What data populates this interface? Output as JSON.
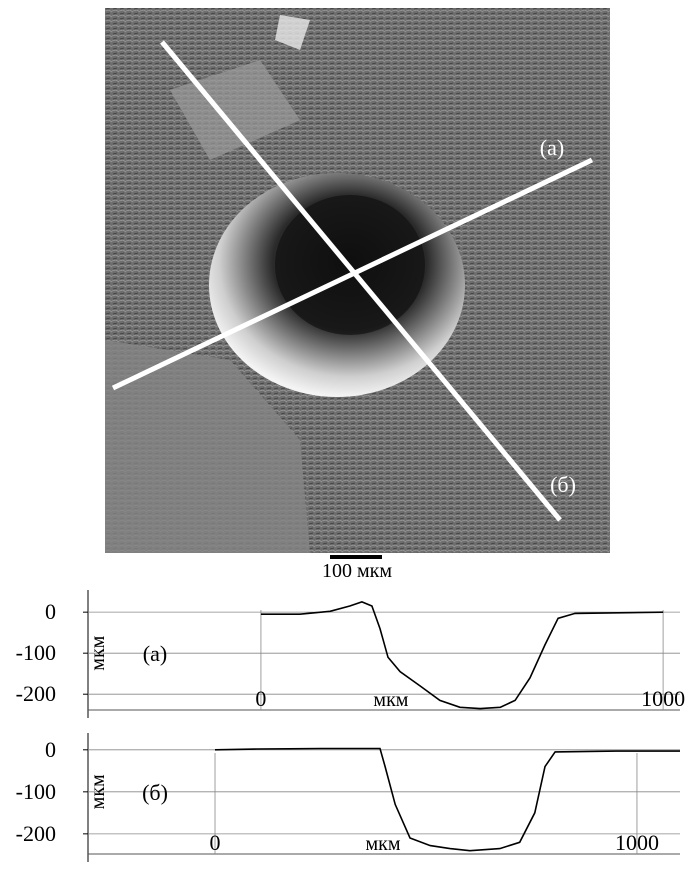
{
  "image": {
    "scale_bar": "100 мкм",
    "line_labels": [
      "(а)",
      "(б)"
    ]
  },
  "chart_data": [
    {
      "type": "line",
      "annotation": "(а)",
      "xlabel": "мкм",
      "ylabel": "мкм",
      "x": [
        0,
        97,
        172,
        221,
        251,
        276,
        296,
        316,
        346,
        396,
        445,
        495,
        545,
        595,
        632,
        669,
        706,
        739,
        781,
        1000
      ],
      "series": [
        {
          "color": "#000000",
          "values": [
            -5,
            -5,
            2,
            15,
            25,
            15,
            -40,
            -110,
            -145,
            -180,
            -215,
            -232,
            -235,
            -232,
            -215,
            -160,
            -80,
            -15,
            -3,
            0
          ]
        }
      ],
      "xlim": [
        -430,
        1042
      ],
      "xticks": [
        0,
        1000
      ],
      "ylim": [
        -258,
        54
      ],
      "yticks": [
        0,
        -100,
        -200
      ],
      "grid": true
    },
    {
      "type": "line",
      "annotation": "(б)",
      "xlabel": "мкм",
      "ylabel": "мкм",
      "x": [
        0,
        100,
        250,
        391,
        403,
        427,
        462,
        510,
        557,
        604,
        675,
        722,
        758,
        782,
        806,
        950,
        1102
      ],
      "series": [
        {
          "color": "#000000",
          "values": [
            0,
            2,
            3,
            3,
            -40,
            -130,
            -210,
            -228,
            -235,
            -240,
            -235,
            -220,
            -150,
            -40,
            -5,
            -3,
            -3
          ]
        }
      ],
      "xlim": [
        -301,
        1102
      ],
      "xticks": [
        0,
        1000
      ],
      "ylim": [
        -267,
        40
      ],
      "yticks": [
        0,
        -100,
        -200
      ],
      "grid": true
    }
  ]
}
